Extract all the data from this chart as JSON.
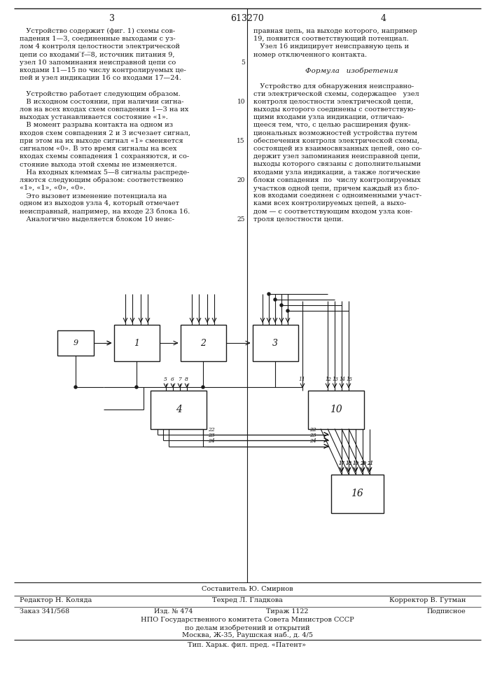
{
  "patent_number": "613270",
  "bg_color": "#ffffff",
  "line_color": "#222222",
  "left_col_text": [
    "   Устройство содержит (фиг. 1) схемы сов-",
    "падения 1—3, соединенные выходами с уз-",
    "лом 4 контроля целостности электрической",
    "цепи со входами ̅f—̅8, источник питания 9,",
    "узел 10 запоминания неисправной цепи со",
    "входами 11—15 по числу контролируемых це-",
    "пей и узел индикации 16 со входами 17—24.",
    "",
    "   Устройство работает следующим образом.",
    "   В исходном состоянии, при наличии сигна-",
    "лов на всех входах схем совпадения 1—3 на их",
    "выходах устанавливается состояние «1».",
    "   В момент разрыва контакта на одном из",
    "входов схем совпадения 2 и 3 исчезает сигнал,",
    "при этом на их выходе сигнал «1» сменяется",
    "сигналом «0». В это время сигналы на всех",
    "входах схемы совпадения 1 сохраняются, и со-",
    "стояние выхода этой схемы не изменяется.",
    "   На входных клеммах 5—8 сигналы распреде-",
    "ляются следующим образом: соответственно",
    "«1», «1», «0», «0».",
    "   Это вызовет изменение потенциала на",
    "одном из выходов узла 4, который отмечает",
    "неисправный, например, на входе 23 блока 16.",
    "   Аналогично выделяется блоком 10 неис-"
  ],
  "right_col_text": [
    "правная цепь, на выходе которого, например",
    "19, появится соответствующий потенциал.",
    "   Узел 16 индицирует неисправную цепь и",
    "номер отключенного контакта.",
    "",
    "Формула   изобретения",
    "",
    "   Устройство для обнаружения неисправно-",
    "сти электрической схемы, содержащее   узел",
    "контроля целостности электрической цепи,",
    "выходы которого соединены с соответствую-",
    "щими входами узла индикации, отличаю-",
    "щееся тем, что, с целью расширения функ-",
    "циональных возможностей устройства путем",
    "обеспечения контроля электрической схемы,",
    "состоящей из взаимосвязанных цепей, оно со-",
    "держит узел запоминания неисправной цепи,",
    "выходы которого связаны с дополнительными",
    "входами узла индикации, а также логические",
    "блоки совпадения  по  числу контролируемых",
    "участков одной цепи, причем каждый из бло-",
    "ков входами соединен с одноименными участ-",
    "ками всех контролируемых цепей, а выхо-",
    "дом — с соответствующим входом узла кон-",
    "троля целостности цепи."
  ],
  "footer": {
    "sostavitel": "Составитель Ю. Смирнов",
    "redaktor": "Редактор Н. Коляда",
    "tehred": "Техред Л. Гладкова",
    "korrektor": "Корректор В. Гутман",
    "zakaz": "Заказ 341/568",
    "izd": "Изд. № 474",
    "tirazh": "Тираж 1122",
    "podpisnoe": "Подписное",
    "npo": "НПО Государственного комитета Совета Министров СССР",
    "po_delam": "по делам изобретений и открытий",
    "moskva": "Москва, Ж-35, Раушская наб., д. 4/5",
    "tip": "Тип. Харьк. фил. пред. «Патент»"
  }
}
